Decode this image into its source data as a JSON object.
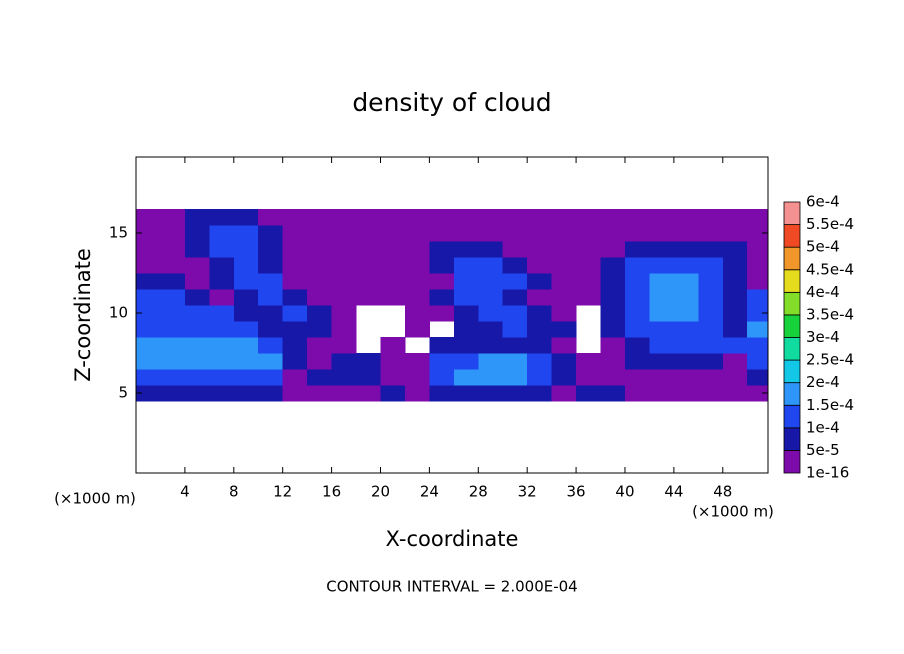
{
  "chart_data": {
    "type": "contour",
    "title": "density of cloud",
    "xlabel": "X-coordinate",
    "ylabel": "Z-coordinate",
    "xunit": "(×1000 m)",
    "yunit": "(×1000 m)",
    "annotation": "CONTOUR INTERVAL = 2.000E-04",
    "xlim": [
      0,
      51.7
    ],
    "ylim": [
      0,
      19.75
    ],
    "xticks": [
      4,
      8,
      12,
      16,
      20,
      24,
      28,
      32,
      36,
      40,
      44,
      48
    ],
    "yticks": [
      5,
      10,
      15
    ],
    "x": [
      1,
      3,
      5,
      7,
      9,
      11,
      13,
      15,
      17,
      19,
      21,
      23,
      25,
      27,
      29,
      31,
      33,
      35,
      37,
      39,
      41,
      43,
      45,
      47,
      49,
      51
    ],
    "y": [
      5,
      6,
      7,
      8,
      9,
      10,
      11,
      12,
      13,
      14,
      15,
      16,
      17
    ],
    "values": [
      [
        5e-05,
        5e-05,
        5e-05,
        5e-05,
        5e-05,
        5e-05,
        1e-16,
        1e-16,
        1e-16,
        1e-16,
        5e-05,
        1e-16,
        5e-05,
        5e-05,
        5e-05,
        5e-05,
        5e-05,
        1e-16,
        5e-05,
        5e-05,
        1e-16,
        1e-16,
        1e-16,
        1e-16,
        1e-16,
        1e-16
      ],
      [
        0.0001,
        0.0001,
        0.0001,
        0.0001,
        0.0001,
        0.0001,
        1e-16,
        5e-05,
        5e-05,
        5e-05,
        1e-16,
        1e-16,
        0.0001,
        0.00015,
        0.00015,
        0.00015,
        0.0001,
        5e-05,
        1e-16,
        1e-16,
        1e-16,
        1e-16,
        1e-16,
        1e-16,
        1e-16,
        5e-05
      ],
      [
        0.00015,
        0.00015,
        0.00015,
        0.00015,
        0.00015,
        0.00015,
        5e-05,
        1e-16,
        5e-05,
        5e-05,
        1e-16,
        1e-16,
        0.0001,
        0.0001,
        0.00015,
        0.00015,
        0.0001,
        5e-05,
        1e-16,
        1e-16,
        5e-05,
        5e-05,
        5e-05,
        5e-05,
        1e-16,
        0.0001
      ],
      [
        0.00015,
        0.00015,
        0.00015,
        0.00015,
        0.00015,
        0.0001,
        5e-05,
        1e-16,
        1e-16,
        null,
        1e-16,
        null,
        5e-05,
        5e-05,
        5e-05,
        5e-05,
        5e-05,
        1e-16,
        null,
        1e-16,
        5e-05,
        0.0001,
        0.0001,
        0.0001,
        0.0001,
        0.0001
      ],
      [
        0.0001,
        0.0001,
        0.0001,
        0.0001,
        0.0001,
        5e-05,
        5e-05,
        5e-05,
        1e-16,
        null,
        null,
        1e-16,
        null,
        5e-05,
        5e-05,
        0.0001,
        5e-05,
        5e-05,
        null,
        5e-05,
        0.0001,
        0.0001,
        0.0001,
        0.0001,
        5e-05,
        0.00015
      ],
      [
        0.0001,
        0.0001,
        0.0001,
        0.0001,
        5e-05,
        5e-05,
        0.0001,
        5e-05,
        1e-16,
        null,
        null,
        1e-16,
        1e-16,
        5e-05,
        0.0001,
        0.0001,
        5e-05,
        1e-16,
        null,
        5e-05,
        0.0001,
        0.00015,
        0.00015,
        0.0001,
        5e-05,
        0.0001
      ],
      [
        0.0001,
        0.0001,
        5e-05,
        1e-16,
        5e-05,
        0.0001,
        5e-05,
        1e-16,
        1e-16,
        1e-16,
        1e-16,
        1e-16,
        5e-05,
        0.0001,
        0.0001,
        5e-05,
        1e-16,
        1e-16,
        1e-16,
        5e-05,
        0.0001,
        0.00015,
        0.00015,
        0.0001,
        5e-05,
        0.0001
      ],
      [
        5e-05,
        5e-05,
        1e-16,
        5e-05,
        0.0001,
        0.0001,
        1e-16,
        1e-16,
        1e-16,
        1e-16,
        1e-16,
        1e-16,
        1e-16,
        0.0001,
        0.0001,
        0.0001,
        5e-05,
        1e-16,
        1e-16,
        5e-05,
        0.0001,
        0.00015,
        0.00015,
        0.0001,
        5e-05,
        1e-16
      ],
      [
        1e-16,
        1e-16,
        1e-16,
        5e-05,
        0.0001,
        5e-05,
        1e-16,
        1e-16,
        1e-16,
        1e-16,
        1e-16,
        1e-16,
        5e-05,
        0.0001,
        0.0001,
        5e-05,
        1e-16,
        1e-16,
        1e-16,
        5e-05,
        0.0001,
        0.0001,
        0.0001,
        0.0001,
        5e-05,
        1e-16
      ],
      [
        1e-16,
        1e-16,
        5e-05,
        0.0001,
        0.0001,
        5e-05,
        1e-16,
        1e-16,
        1e-16,
        1e-16,
        1e-16,
        1e-16,
        5e-05,
        5e-05,
        5e-05,
        1e-16,
        1e-16,
        1e-16,
        1e-16,
        1e-16,
        5e-05,
        5e-05,
        5e-05,
        5e-05,
        5e-05,
        1e-16
      ],
      [
        1e-16,
        1e-16,
        5e-05,
        0.0001,
        0.0001,
        5e-05,
        1e-16,
        1e-16,
        1e-16,
        1e-16,
        1e-16,
        1e-16,
        1e-16,
        1e-16,
        1e-16,
        1e-16,
        1e-16,
        1e-16,
        1e-16,
        1e-16,
        1e-16,
        1e-16,
        1e-16,
        1e-16,
        1e-16,
        1e-16
      ],
      [
        1e-16,
        1e-16,
        5e-05,
        5e-05,
        5e-05,
        1e-16,
        1e-16,
        1e-16,
        1e-16,
        1e-16,
        1e-16,
        1e-16,
        1e-16,
        1e-16,
        1e-16,
        1e-16,
        1e-16,
        1e-16,
        1e-16,
        1e-16,
        1e-16,
        1e-16,
        1e-16,
        1e-16,
        1e-16,
        1e-16
      ],
      [
        null,
        null,
        null,
        null,
        null,
        null,
        null,
        null,
        null,
        null,
        null,
        null,
        null,
        null,
        null,
        null,
        null,
        null,
        null,
        null,
        null,
        null,
        null,
        null,
        null,
        null
      ]
    ],
    "colorbar": {
      "ticks": [
        {
          "value": 1e-16,
          "label": "1e-16"
        },
        {
          "value": 5e-05,
          "label": "5e-5"
        },
        {
          "value": 0.0001,
          "label": "1e-4"
        },
        {
          "value": 0.00015,
          "label": "1.5e-4"
        },
        {
          "value": 0.0002,
          "label": "2e-4"
        },
        {
          "value": 0.00025,
          "label": "2.5e-4"
        },
        {
          "value": 0.0003,
          "label": "3e-4"
        },
        {
          "value": 0.00035,
          "label": "3.5e-4"
        },
        {
          "value": 0.0004,
          "label": "4e-4"
        },
        {
          "value": 0.00045,
          "label": "4.5e-4"
        },
        {
          "value": 0.0005,
          "label": "5e-4"
        },
        {
          "value": 0.00055,
          "label": "5.5e-4"
        },
        {
          "value": 0.0006,
          "label": "6e-4"
        }
      ],
      "colors": [
        "#7d0aab",
        "#1818a8",
        "#2046f0",
        "#2e96f8",
        "#12c8e6",
        "#10dca0",
        "#18d23c",
        "#82dc28",
        "#e6dc1e",
        "#f0962a",
        "#f04a24",
        "#f59090"
      ]
    }
  }
}
